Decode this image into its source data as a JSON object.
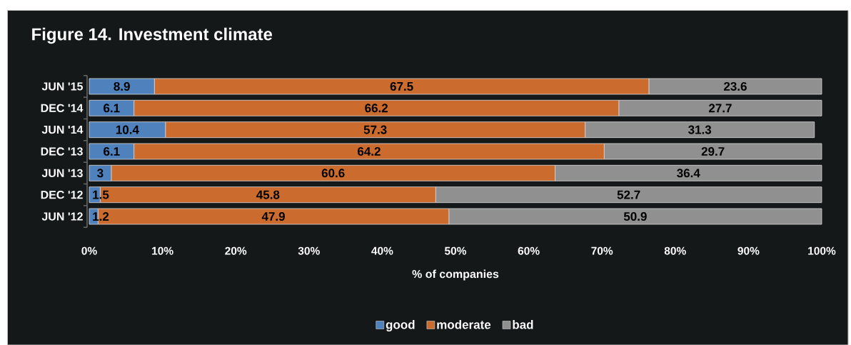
{
  "chart_data": {
    "type": "bar",
    "orientation": "horizontal",
    "stacked": true,
    "title": "Figure 14. Investment climate",
    "xlabel": "% of companies",
    "categories": [
      "JUN '15",
      "DEC '14",
      "JUN '14",
      "DEC '13",
      "JUN '13",
      "DEC '12",
      "JUN '12"
    ],
    "series": [
      {
        "name": "good",
        "color": "#4f81bd",
        "values": [
          8.9,
          6.1,
          10.4,
          6.1,
          3,
          1.5,
          1.2
        ]
      },
      {
        "name": "moderate",
        "color": "#cc6b2e",
        "values": [
          67.5,
          66.2,
          57.3,
          64.2,
          60.6,
          45.8,
          47.9
        ]
      },
      {
        "name": "bad",
        "color": "#8f908f",
        "values": [
          23.6,
          27.7,
          31.3,
          29.7,
          36.4,
          52.7,
          50.9
        ]
      }
    ],
    "xlim": [
      0,
      100
    ],
    "xticks": [
      {
        "value": 0,
        "label": "0%"
      },
      {
        "value": 10,
        "label": "10%"
      },
      {
        "value": 20,
        "label": "20%"
      },
      {
        "value": 30,
        "label": "30%"
      },
      {
        "value": 40,
        "label": "40%"
      },
      {
        "value": 50,
        "label": "50%"
      },
      {
        "value": 60,
        "label": "60%"
      },
      {
        "value": 70,
        "label": "70%"
      },
      {
        "value": 80,
        "label": "80%"
      },
      {
        "value": 90,
        "label": "90%"
      },
      {
        "value": 100,
        "label": "100%"
      }
    ],
    "data_labels": true,
    "legend": "bottom"
  }
}
